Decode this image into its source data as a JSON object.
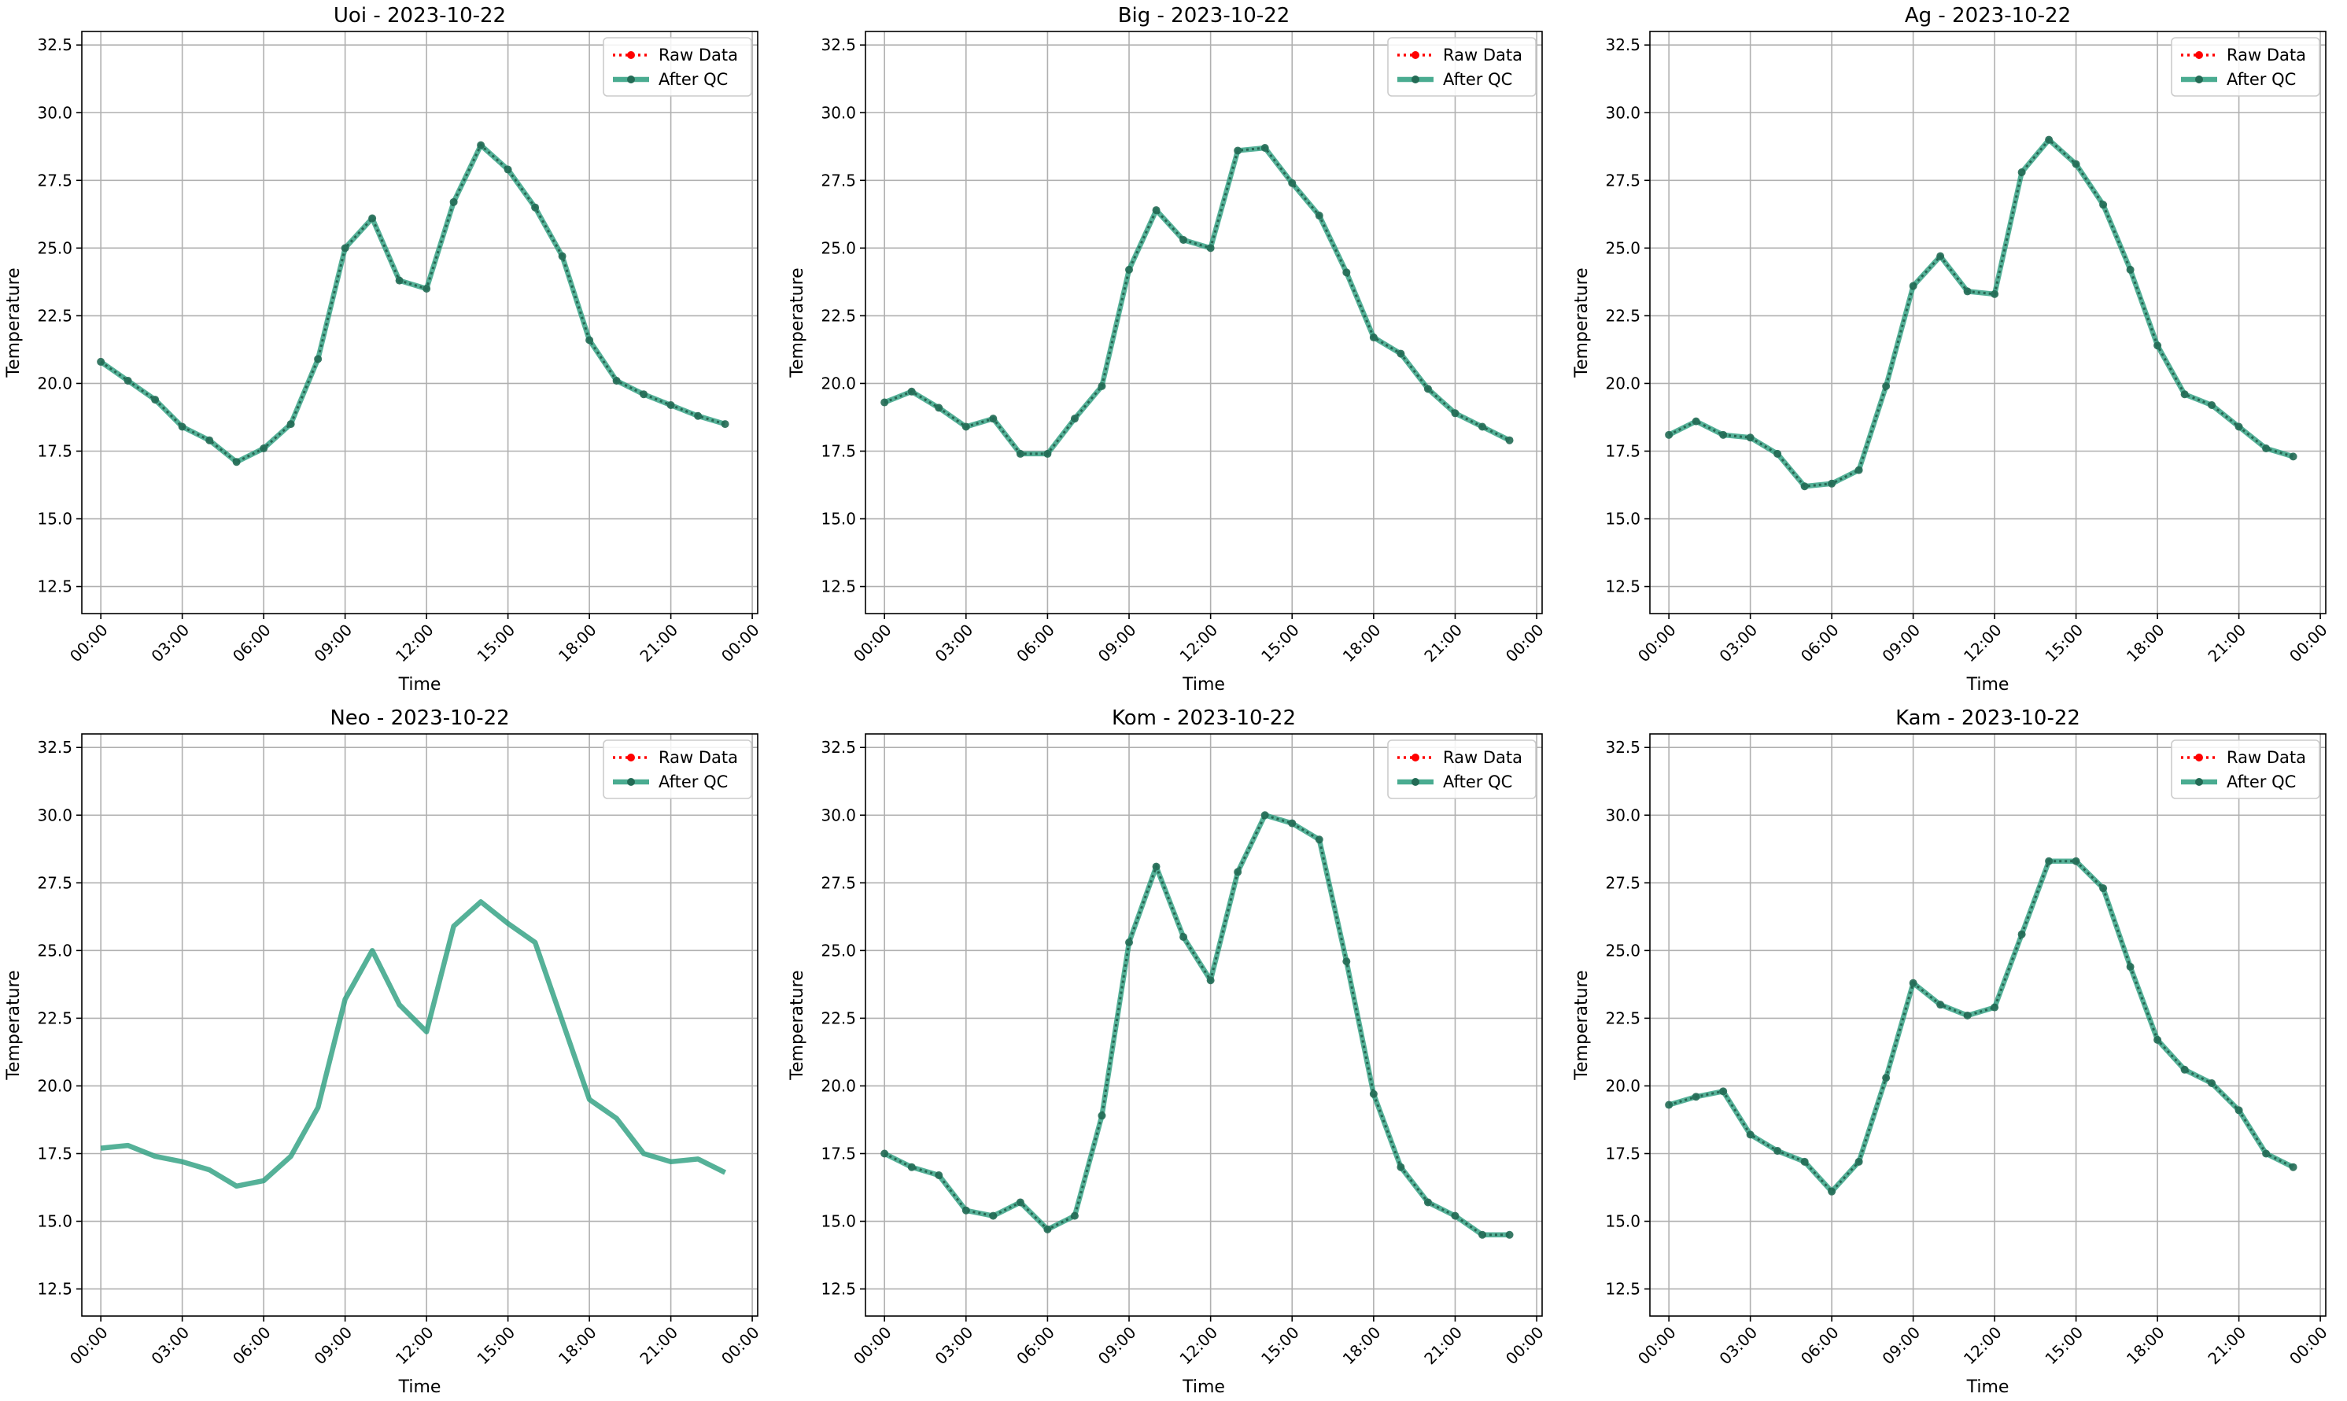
{
  "colors": {
    "raw": "#ff0000",
    "qc": "#2a9d7e",
    "grid": "#b0b0b0",
    "axes": "#000000",
    "legend_border": "#cccccc"
  },
  "chart_data": [
    {
      "type": "line",
      "title": "Uoi - 2023-10-22",
      "xlabel": "Time",
      "ylabel": "Temperature",
      "x_ticks": [
        "00:00",
        "03:00",
        "06:00",
        "09:00",
        "12:00",
        "15:00",
        "18:00",
        "21:00",
        "00:00"
      ],
      "y_ticks": [
        "12.5",
        "15.0",
        "17.5",
        "20.0",
        "22.5",
        "25.0",
        "27.5",
        "30.0",
        "32.5"
      ],
      "ylim": [
        11.5,
        33.0
      ],
      "xlim_hours": [
        -0.7,
        24.2
      ],
      "grid": true,
      "legend_position": "top-right",
      "x_hours": [
        0,
        1,
        2,
        3,
        4,
        5,
        6,
        7,
        8,
        9,
        10,
        11,
        12,
        13,
        14,
        15,
        16,
        17,
        18,
        19,
        20,
        21,
        22,
        23
      ],
      "series": [
        {
          "name": "Raw Data",
          "style": "dotted-marker",
          "values": [
            20.8,
            20.1,
            19.4,
            18.4,
            17.9,
            17.1,
            17.6,
            18.5,
            20.9,
            25.0,
            26.1,
            23.8,
            23.5,
            26.7,
            28.8,
            27.9,
            26.5,
            24.7,
            21.6,
            20.1,
            19.6,
            19.2,
            18.8,
            18.5
          ]
        },
        {
          "name": "After QC",
          "style": "solid-marker",
          "values": [
            20.8,
            20.1,
            19.4,
            18.4,
            17.9,
            17.1,
            17.6,
            18.5,
            20.9,
            25.0,
            26.1,
            23.8,
            23.5,
            26.7,
            28.8,
            27.9,
            26.5,
            24.7,
            21.6,
            20.1,
            19.6,
            19.2,
            18.8,
            18.5
          ]
        }
      ]
    },
    {
      "type": "line",
      "title": "Big - 2023-10-22",
      "xlabel": "Time",
      "ylabel": "Temperature",
      "x_ticks": [
        "00:00",
        "03:00",
        "06:00",
        "09:00",
        "12:00",
        "15:00",
        "18:00",
        "21:00",
        "00:00"
      ],
      "y_ticks": [
        "12.5",
        "15.0",
        "17.5",
        "20.0",
        "22.5",
        "25.0",
        "27.5",
        "30.0",
        "32.5"
      ],
      "ylim": [
        11.5,
        33.0
      ],
      "xlim_hours": [
        -0.7,
        24.2
      ],
      "grid": true,
      "legend_position": "top-right",
      "x_hours": [
        0,
        1,
        2,
        3,
        4,
        5,
        6,
        7,
        8,
        9,
        10,
        11,
        12,
        13,
        14,
        15,
        16,
        17,
        18,
        19,
        20,
        21,
        22,
        23
      ],
      "series": [
        {
          "name": "Raw Data",
          "style": "dotted-marker",
          "values": [
            19.3,
            19.7,
            19.1,
            18.4,
            18.7,
            17.4,
            17.4,
            18.7,
            19.9,
            24.2,
            26.4,
            25.3,
            25.0,
            28.6,
            28.7,
            27.4,
            26.2,
            24.1,
            21.7,
            21.1,
            19.8,
            18.9,
            18.4,
            17.9
          ]
        },
        {
          "name": "After QC",
          "style": "solid-marker",
          "values": [
            19.3,
            19.7,
            19.1,
            18.4,
            18.7,
            17.4,
            17.4,
            18.7,
            19.9,
            24.2,
            26.4,
            25.3,
            25.0,
            28.6,
            28.7,
            27.4,
            26.2,
            24.1,
            21.7,
            21.1,
            19.8,
            18.9,
            18.4,
            17.9
          ]
        }
      ]
    },
    {
      "type": "line",
      "title": "Ag - 2023-10-22",
      "xlabel": "Time",
      "ylabel": "Temperature",
      "x_ticks": [
        "00:00",
        "03:00",
        "06:00",
        "09:00",
        "12:00",
        "15:00",
        "18:00",
        "21:00",
        "00:00"
      ],
      "y_ticks": [
        "12.5",
        "15.0",
        "17.5",
        "20.0",
        "22.5",
        "25.0",
        "27.5",
        "30.0",
        "32.5"
      ],
      "ylim": [
        11.5,
        33.0
      ],
      "xlim_hours": [
        -0.7,
        24.2
      ],
      "grid": true,
      "legend_position": "top-right",
      "x_hours": [
        0,
        1,
        2,
        3,
        4,
        5,
        6,
        7,
        8,
        9,
        10,
        11,
        12,
        13,
        14,
        15,
        16,
        17,
        18,
        19,
        20,
        21,
        22,
        23
      ],
      "series": [
        {
          "name": "Raw Data",
          "style": "dotted-marker",
          "values": [
            18.1,
            18.6,
            18.1,
            18.0,
            17.4,
            16.2,
            16.3,
            16.8,
            19.9,
            23.6,
            24.7,
            23.4,
            23.3,
            27.8,
            29.0,
            28.1,
            26.6,
            24.2,
            21.4,
            19.6,
            19.2,
            18.4,
            17.6,
            17.3
          ]
        },
        {
          "name": "After QC",
          "style": "solid-marker",
          "values": [
            18.1,
            18.6,
            18.1,
            18.0,
            17.4,
            16.2,
            16.3,
            16.8,
            19.9,
            23.6,
            24.7,
            23.4,
            23.3,
            27.8,
            29.0,
            28.1,
            26.6,
            24.2,
            21.4,
            19.6,
            19.2,
            18.4,
            17.6,
            17.3
          ]
        }
      ]
    },
    {
      "type": "line",
      "title": "Neo - 2023-10-22",
      "xlabel": "Time",
      "ylabel": "Temperature",
      "x_ticks": [
        "00:00",
        "03:00",
        "06:00",
        "09:00",
        "12:00",
        "15:00",
        "18:00",
        "21:00",
        "00:00"
      ],
      "y_ticks": [
        "12.5",
        "15.0",
        "17.5",
        "20.0",
        "22.5",
        "25.0",
        "27.5",
        "30.0",
        "32.5"
      ],
      "ylim": [
        11.5,
        33.0
      ],
      "xlim_hours": [
        -0.7,
        24.2
      ],
      "grid": true,
      "legend_position": "top-right",
      "x_hours": [
        0,
        1,
        2,
        3,
        4,
        5,
        6,
        7,
        8,
        9,
        10,
        11,
        12,
        13,
        14,
        15,
        16,
        17,
        18,
        19,
        20,
        21,
        22,
        23
      ],
      "series": [
        {
          "name": "Raw Data",
          "style": "none",
          "values": []
        },
        {
          "name": "After QC",
          "style": "solid",
          "values": [
            17.7,
            17.8,
            17.4,
            17.2,
            16.9,
            16.3,
            16.5,
            17.4,
            19.2,
            23.2,
            25.0,
            23.0,
            22.0,
            25.9,
            26.8,
            26.0,
            25.3,
            22.4,
            19.5,
            18.8,
            17.5,
            17.2,
            17.3,
            16.8
          ]
        }
      ]
    },
    {
      "type": "line",
      "title": "Kom - 2023-10-22",
      "xlabel": "Time",
      "ylabel": "Temperature",
      "x_ticks": [
        "00:00",
        "03:00",
        "06:00",
        "09:00",
        "12:00",
        "15:00",
        "18:00",
        "21:00",
        "00:00"
      ],
      "y_ticks": [
        "12.5",
        "15.0",
        "17.5",
        "20.0",
        "22.5",
        "25.0",
        "27.5",
        "30.0",
        "32.5"
      ],
      "ylim": [
        11.5,
        33.0
      ],
      "xlim_hours": [
        -0.7,
        24.2
      ],
      "grid": true,
      "legend_position": "top-right",
      "x_hours": [
        0,
        1,
        2,
        3,
        4,
        5,
        6,
        7,
        8,
        9,
        10,
        11,
        12,
        13,
        14,
        15,
        16,
        17,
        18,
        19,
        20,
        21,
        22,
        23
      ],
      "series": [
        {
          "name": "Raw Data",
          "style": "dotted-marker",
          "values": [
            17.5,
            17.0,
            16.7,
            15.4,
            15.2,
            15.7,
            14.7,
            15.2,
            18.9,
            25.3,
            28.1,
            25.5,
            23.9,
            27.9,
            30.0,
            29.7,
            29.1,
            24.6,
            19.7,
            17.0,
            15.7,
            15.2,
            14.5,
            14.5
          ]
        },
        {
          "name": "After QC",
          "style": "solid-marker",
          "values": [
            17.5,
            17.0,
            16.7,
            15.4,
            15.2,
            15.7,
            14.7,
            15.2,
            18.9,
            25.3,
            28.1,
            25.5,
            23.9,
            27.9,
            30.0,
            29.7,
            29.1,
            24.6,
            19.7,
            17.0,
            15.7,
            15.2,
            14.5,
            14.5
          ]
        }
      ]
    },
    {
      "type": "line",
      "title": "Kam - 2023-10-22",
      "xlabel": "Time",
      "ylabel": "Temperature",
      "x_ticks": [
        "00:00",
        "03:00",
        "06:00",
        "09:00",
        "12:00",
        "15:00",
        "18:00",
        "21:00",
        "00:00"
      ],
      "y_ticks": [
        "12.5",
        "15.0",
        "17.5",
        "20.0",
        "22.5",
        "25.0",
        "27.5",
        "30.0",
        "32.5"
      ],
      "ylim": [
        11.5,
        33.0
      ],
      "xlim_hours": [
        -0.7,
        24.2
      ],
      "grid": true,
      "legend_position": "top-right",
      "x_hours": [
        0,
        1,
        2,
        3,
        4,
        5,
        6,
        7,
        8,
        9,
        10,
        11,
        12,
        13,
        14,
        15,
        16,
        17,
        18,
        19,
        20,
        21,
        22,
        23
      ],
      "series": [
        {
          "name": "Raw Data",
          "style": "dotted-marker",
          "values": [
            19.3,
            19.6,
            19.8,
            18.2,
            17.6,
            17.2,
            16.1,
            17.2,
            20.3,
            23.8,
            23.0,
            22.6,
            22.9,
            25.6,
            28.3,
            28.3,
            27.3,
            24.4,
            21.7,
            20.6,
            20.1,
            19.1,
            17.5,
            17.0
          ]
        },
        {
          "name": "After QC",
          "style": "solid-marker",
          "values": [
            19.3,
            19.6,
            19.8,
            18.2,
            17.6,
            17.2,
            16.1,
            17.2,
            20.3,
            23.8,
            23.0,
            22.6,
            22.9,
            25.6,
            28.3,
            28.3,
            27.3,
            24.4,
            21.7,
            20.6,
            20.1,
            19.1,
            17.5,
            17.0
          ]
        }
      ]
    }
  ]
}
